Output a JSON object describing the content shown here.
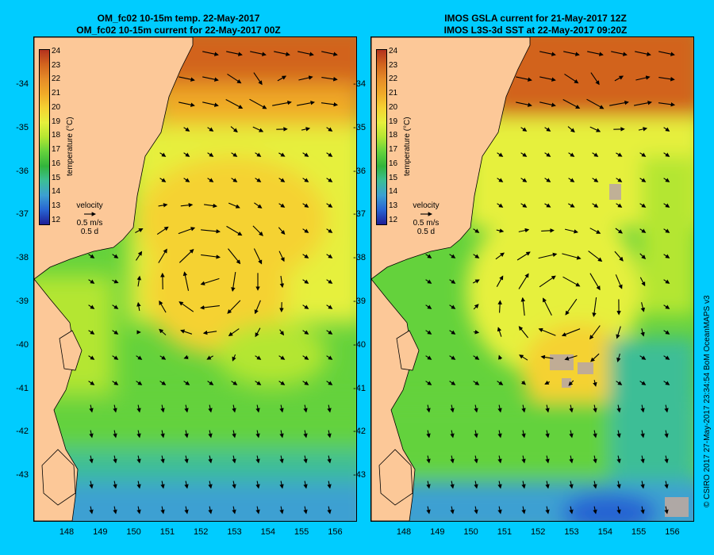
{
  "panels": [
    {
      "title_line1": "OM_fc02 10-15m temp. 22-May-2017",
      "title_line2": "OM_fc02 10-15m current for 22-May-2017 00Z"
    },
    {
      "title_line1": "IMOS GSLA current for 21-May-2017 12Z",
      "title_line2": "IMOS L3S-3d SST at 22-May-2017 09:20Z"
    }
  ],
  "axes": {
    "lat_labels": [
      "-34",
      "-35",
      "-36",
      "-37",
      "-38",
      "-39",
      "-40",
      "-41",
      "-42",
      "-43"
    ],
    "lon_labels": [
      "148",
      "149",
      "150",
      "151",
      "152",
      "153",
      "154",
      "155",
      "156"
    ]
  },
  "colorbar": {
    "title": "temperature (°C)",
    "ticks": [
      "24",
      "23",
      "22",
      "21",
      "20",
      "19",
      "18",
      "17",
      "16",
      "15",
      "14",
      "13",
      "12"
    ],
    "colors": [
      "#b4321e",
      "#d2641e",
      "#e68c28",
      "#f0aa28",
      "#f5d232",
      "#e6f03c",
      "#b4e632",
      "#64d23c",
      "#32b43c",
      "#3cbe96",
      "#3ca0d2",
      "#2864d2",
      "#1e1e96"
    ]
  },
  "velocity_legend": {
    "title": "velocity",
    "speed": "0.5 m/s",
    "duration": "0.5 d"
  },
  "copyright": "© CSIRO 2017   27-May-2017 23:34:54 BoM OceanMAPS v3",
  "colors": {
    "background": "#00ccff",
    "land": "#fcc898"
  }
}
